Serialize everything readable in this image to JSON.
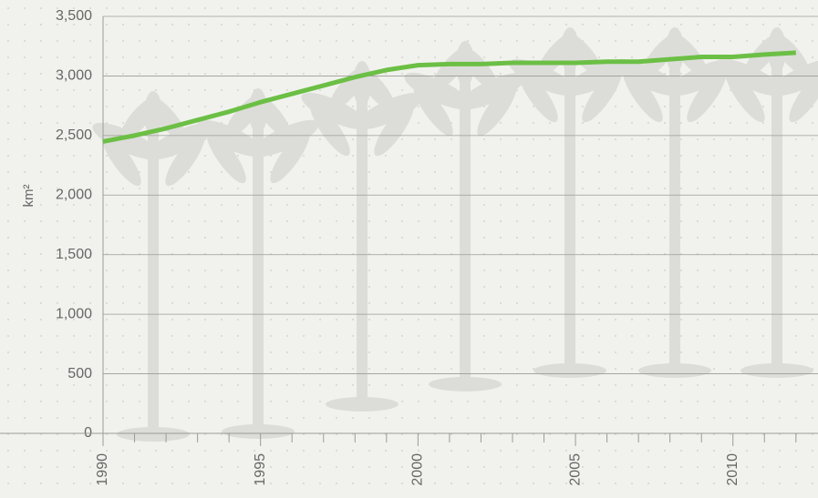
{
  "chart_data": {
    "type": "line",
    "y_label": "km²",
    "x": [
      1990,
      1991,
      1992,
      1993,
      1994,
      1995,
      1996,
      1997,
      1998,
      1999,
      2000,
      2001,
      2002,
      2003,
      2004,
      2005,
      2006,
      2007,
      2008,
      2009,
      2010,
      2011,
      2012
    ],
    "series": [
      {
        "color": "#6cbf45",
        "values": [
          2450,
          2500,
          2560,
          2630,
          2700,
          2780,
          2850,
          2920,
          2990,
          3050,
          3090,
          3100,
          3100,
          3110,
          3110,
          3110,
          3120,
          3120,
          3140,
          3160,
          3160,
          3180,
          3195
        ]
      }
    ],
    "xlim": [
      1990,
      2012.7
    ],
    "xticks": [
      1990,
      1995,
      2000,
      2005,
      2010
    ],
    "xminorticks": [
      1991,
      1992,
      1993,
      1994,
      1996,
      1997,
      1998,
      1999,
      2001,
      2002,
      2003,
      2004,
      2006,
      2007,
      2008,
      2009,
      2011,
      2012
    ],
    "ylim": [
      0,
      3500
    ],
    "yticks": [
      0,
      {
        "value": 500,
        "label": "500"
      },
      {
        "value": 1000,
        "label": "1,000"
      },
      {
        "value": 1500,
        "label": "1,500"
      },
      {
        "value": 2000,
        "label": "2,000"
      },
      {
        "value": 2500,
        "label": "2,500"
      },
      {
        "value": 3000,
        "label": "3,000"
      },
      {
        "value": 3500,
        "label": "3,500"
      }
    ],
    "grid": true
  }
}
